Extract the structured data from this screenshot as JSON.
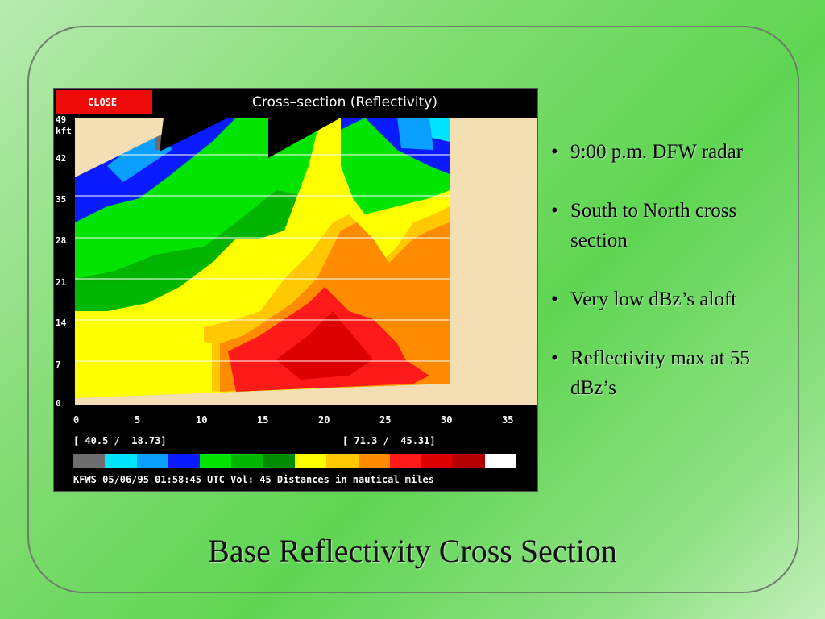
{
  "radar": {
    "close_label": "CLOSE",
    "title": "Cross–section (Reflectivity)",
    "y_unit_top": "49",
    "y_unit": "kft",
    "y_ticks": [
      "42",
      "35",
      "28",
      "21",
      "14",
      "7",
      "0"
    ],
    "x_ticks": [
      "0",
      "5",
      "10",
      "15",
      "20",
      "25",
      "30",
      "35"
    ],
    "coord_left": "[ 40.5 /  18.73]",
    "coord_right": "[ 71.3 /  45.31]",
    "colorbar_colors": [
      "#6e6e6e",
      "#00e5ff",
      "#0aa0ff",
      "#0a1cff",
      "#00e400",
      "#00b800",
      "#008c00",
      "#ffff00",
      "#ffc800",
      "#ff8c00",
      "#ff1a1a",
      "#dc0000",
      "#b40000",
      "#ffffff"
    ],
    "footer": "KFWS 05/06/95 01:58:45 UTC Vol: 45 Distances in nautical miles"
  },
  "bullets": [
    "9:00 p.m. DFW radar",
    "South to North cross section",
    "Very low dBz’s aloft",
    "Reflectivity max at 55 dBz’s"
  ],
  "slide_title": "Base Reflectivity Cross Section"
}
